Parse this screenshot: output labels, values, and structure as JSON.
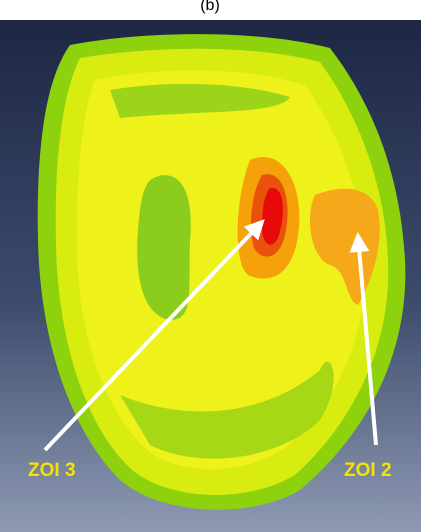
{
  "caption": "(b)",
  "labels": [
    {
      "text": "ZOI 3"
    },
    {
      "text": "ZOI 2"
    }
  ]
}
